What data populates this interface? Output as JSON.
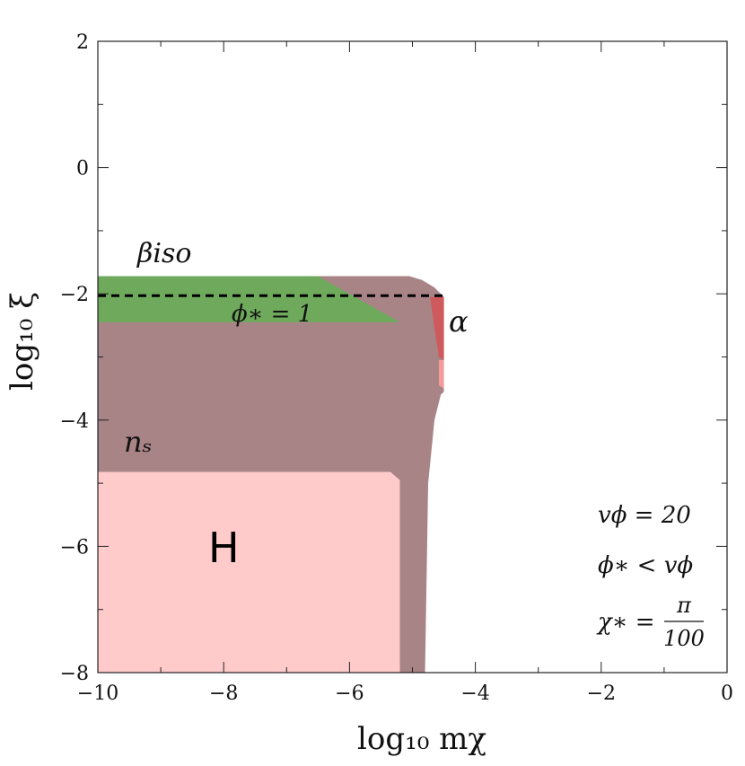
{
  "chart_data": {
    "type": "area",
    "title": "",
    "xlabel": "log₁₀ mχ",
    "ylabel": "log₁₀ ξ",
    "xlim": [
      -10,
      0
    ],
    "ylim": [
      -8,
      2
    ],
    "xticks": [
      -10,
      -8,
      -6,
      -4,
      -2,
      0
    ],
    "yticks": [
      -8,
      -6,
      -4,
      -2,
      0,
      2
    ],
    "xtick_labels": [
      "−10",
      "−8",
      "−6",
      "−4",
      "−2",
      "0"
    ],
    "ytick_labels": [
      "−8",
      "−6",
      "−4",
      "−2",
      "0",
      "2"
    ],
    "grid": false,
    "regions": [
      {
        "name": "n_s",
        "label": "nₛ",
        "color": "#a88486",
        "polygon": [
          [
            -10,
            -8
          ],
          [
            -4.8,
            -8
          ],
          [
            -4.75,
            -5.0
          ],
          [
            -4.65,
            -4.0
          ],
          [
            -4.55,
            -3.6
          ],
          [
            -4.5,
            -3.55
          ],
          [
            -4.5,
            -2.05
          ],
          [
            -4.65,
            -1.9
          ],
          [
            -4.85,
            -1.78
          ],
          [
            -5.05,
            -1.72
          ],
          [
            -10,
            -1.72
          ]
        ]
      },
      {
        "name": "beta_iso",
        "label": "βiso",
        "color": "#6fa95c",
        "polygon": [
          [
            -10,
            -1.72
          ],
          [
            -6.5,
            -1.72
          ],
          [
            -5.2,
            -2.45
          ],
          [
            -10,
            -2.45
          ]
        ]
      },
      {
        "name": "alpha",
        "label": "α",
        "color": "#cf5a5d",
        "polygon": [
          [
            -4.72,
            -2.05
          ],
          [
            -4.5,
            -2.05
          ],
          [
            -4.5,
            -3.05
          ],
          [
            -4.58,
            -3.0
          ],
          [
            -4.65,
            -2.55
          ]
        ]
      },
      {
        "name": "alpha_light",
        "label": "",
        "color": "#f79a9a",
        "polygon": [
          [
            -4.58,
            -3.05
          ],
          [
            -4.5,
            -3.05
          ],
          [
            -4.5,
            -3.5
          ],
          [
            -4.58,
            -3.45
          ]
        ]
      },
      {
        "name": "H",
        "label": "H",
        "color": "#ffcaca",
        "polygon": [
          [
            -10,
            -8
          ],
          [
            -5.2,
            -8
          ],
          [
            -5.2,
            -4.95
          ],
          [
            -5.35,
            -4.82
          ],
          [
            -10,
            -4.82
          ]
        ]
      }
    ],
    "lines": [
      {
        "name": "phi_star_eq_1",
        "label": "ϕ∗ = 1",
        "style": "dashed",
        "color": "#000000",
        "x": [
          -10,
          -4.5
        ],
        "y": [
          -2.03,
          -2.03
        ]
      }
    ],
    "annotations": {
      "v_phi": "vϕ = 20",
      "phi_lt": "ϕ∗ < vϕ",
      "chi_lhs": "χ∗ =",
      "chi_num": "π",
      "chi_den": "100"
    }
  }
}
